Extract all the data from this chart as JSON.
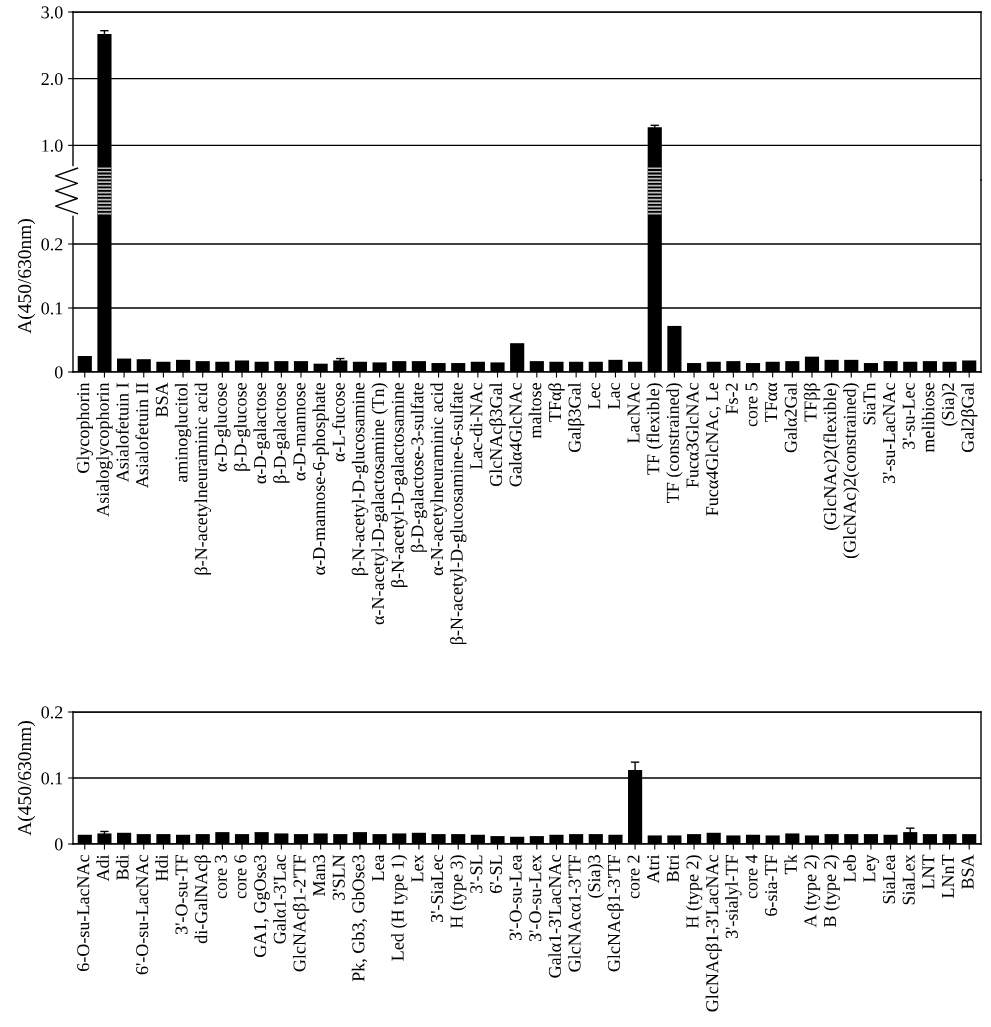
{
  "chart_data": [
    {
      "type": "bar",
      "color": "#000000",
      "grid": "y",
      "tick_labels": "y",
      "categories": [
        null,
        null,
        null,
        null,
        null,
        null,
        null,
        null,
        null,
        null,
        null,
        null,
        null,
        null,
        null,
        null,
        null,
        null,
        null,
        null,
        null,
        null,
        null,
        null,
        null,
        null,
        null,
        null,
        null,
        null,
        null,
        null,
        null,
        null,
        null,
        null,
        null,
        null,
        null,
        null,
        null,
        null,
        null,
        null,
        null,
        null
      ],
      "values": [
        null,
        2.67,
        null,
        null,
        null,
        null,
        null,
        null,
        null,
        null,
        null,
        null,
        null,
        null,
        null,
        null,
        null,
        null,
        null,
        null,
        null,
        null,
        null,
        null,
        null,
        null,
        null,
        null,
        null,
        1.27,
        null,
        null,
        null,
        null,
        null,
        null,
        null,
        null,
        null,
        null,
        null,
        null,
        null,
        null,
        null,
        null
      ],
      "errors": [
        null,
        0.05,
        null,
        null,
        null,
        null,
        null,
        null,
        null,
        null,
        null,
        null,
        null,
        null,
        null,
        null,
        null,
        null,
        null,
        null,
        null,
        null,
        null,
        null,
        null,
        null,
        null,
        null,
        null,
        0.03,
        null,
        null,
        null,
        null,
        null,
        null,
        null,
        null,
        null,
        null,
        null,
        null,
        null,
        null,
        null,
        null
      ],
      "ylim": [
        0.48,
        3.0
      ],
      "yticks": [
        {
          "value": 1.0,
          "label": "1.0"
        },
        {
          "value": 2.0,
          "label": "2.0"
        },
        {
          "value": 3.0,
          "label": "3.0"
        }
      ]
    },
    {
      "type": "bar",
      "ylabel": "A(450/630nm)",
      "color": "#000000",
      "grid": "y",
      "categories": [
        "Glycophorin",
        "Asialoglycophorin",
        "Asialofetuin I",
        "Asialofetuin II",
        "BSA",
        "aminoglucitol",
        "β-N-acetylneuraminic acid",
        "α-D-glucose",
        "β-D-glucose",
        "α-D-galactose",
        "β-D-galactose",
        "α-D-mannose",
        "α-D-mannose-6-phosphate",
        "α-L-fucose",
        "β-N-acetyl-D-glucosamine",
        "α-N-acetyl-D-galactosamine (Tn)",
        "β-N-acetyl-D-galactosamine",
        "β-D-galactose-3-sulfate",
        "α-N-acetylneuraminic acid",
        "β-N-acetyl-D-glucosamine-6-sulfate",
        "Lac-di-NAc",
        "GlcNAcβ3Gal",
        "Galα4GlcNAc",
        "maltose",
        "TFαβ",
        "Galβ3Gal",
        "Lec",
        "Lac",
        "LacNAc",
        "TF (flexible)",
        "TF (constrained)",
        "Fucα3GlcNAc",
        "Fucα4GlcNAc, Le",
        "Fs-2",
        "core 5",
        "TFαα",
        "Galα2Gal",
        "TFββ",
        "(GlcNAc)2(flexible)",
        "(GlcNAc)2(constrained)",
        "SiaTn",
        "3'-su-LacNAc",
        "3'-su-Lec",
        "melibiose",
        "(Sia)2",
        "Gal2βGal"
      ],
      "values": [
        0.025,
        null,
        0.021,
        0.02,
        0.016,
        0.019,
        0.017,
        0.016,
        0.018,
        0.016,
        0.017,
        0.017,
        0.013,
        0.018,
        0.016,
        0.015,
        0.017,
        0.017,
        0.014,
        0.014,
        0.016,
        0.015,
        0.045,
        0.017,
        0.016,
        0.016,
        0.016,
        0.019,
        0.016,
        null,
        0.072,
        0.014,
        0.016,
        0.017,
        0.014,
        0.016,
        0.017,
        0.024,
        0.019,
        0.019,
        0.014,
        0.017,
        0.016,
        0.017,
        0.016,
        0.018
      ],
      "errors": [
        null,
        null,
        null,
        null,
        null,
        null,
        null,
        null,
        null,
        null,
        null,
        null,
        null,
        0.003,
        null,
        null,
        null,
        null,
        null,
        null,
        null,
        null,
        null,
        null,
        null,
        null,
        null,
        null,
        null,
        null,
        null,
        null,
        null,
        null,
        null,
        null,
        null,
        null,
        null,
        null,
        null,
        null,
        null,
        null,
        null,
        null
      ],
      "ylim": [
        0,
        0.3
      ],
      "yticks": [
        0,
        0.1,
        0.2
      ]
    },
    {
      "type": "bar",
      "ylabel": "A(450/630nm)",
      "color": "#000000",
      "grid": "y",
      "categories": [
        "6-O-su-LacNAc",
        "Adi",
        "Bdi",
        "6'-O-su-LacNAc",
        "Hdi",
        "3'-O-su-TF",
        "di-GalNAcβ",
        "core 3",
        "core 6",
        "GA1, GgOse3",
        "Galα1-3'Lac",
        "GlcNAcβ1-2'TF",
        "Man3",
        "3'SLN",
        "Pk, Gb3, GbOse3",
        "Lea",
        "Led (H type 1)",
        "Lex",
        "3'-SiaLec",
        "H (type 3)",
        "3'-SL",
        "6'-SL",
        "3'-O-su-Lea",
        "3'-O-su-Lex",
        "Galα1-3'LacNAc",
        "GlcNAcα1-3'TF",
        "(Sia)3",
        "GlcNAcβ1-3'TF",
        "core 2",
        "Atri",
        "Btri",
        "H (type 2)",
        "GlcNAcβ1-3'LacNAc",
        "3'-sialyl-TF",
        "core 4",
        "6-sia-TF",
        "Tk",
        "A (type 2)",
        "B (type 2)",
        "Leb",
        "Ley",
        "SiaLea",
        "SiaLex",
        "LNT",
        "LNnT",
        "BSA"
      ],
      "values": [
        0.014,
        0.016,
        0.017,
        0.015,
        0.015,
        0.014,
        0.015,
        0.018,
        0.015,
        0.018,
        0.016,
        0.015,
        0.016,
        0.015,
        0.018,
        0.015,
        0.016,
        0.017,
        0.015,
        0.015,
        0.014,
        0.012,
        0.011,
        0.012,
        0.014,
        0.015,
        0.015,
        0.014,
        0.112,
        0.013,
        0.013,
        0.015,
        0.017,
        0.013,
        0.014,
        0.013,
        0.016,
        0.013,
        0.015,
        0.015,
        0.015,
        0.014,
        0.018,
        0.015,
        0.015,
        0.015
      ],
      "errors": [
        null,
        0.003,
        null,
        null,
        null,
        null,
        null,
        null,
        null,
        null,
        null,
        null,
        null,
        null,
        null,
        null,
        null,
        null,
        null,
        null,
        null,
        null,
        null,
        null,
        null,
        null,
        null,
        null,
        0.012,
        null,
        null,
        null,
        null,
        null,
        null,
        null,
        null,
        null,
        null,
        null,
        null,
        null,
        0.006,
        null,
        null,
        null
      ],
      "ylim": [
        0,
        0.2
      ],
      "yticks": [
        0,
        0.1,
        0.2
      ]
    }
  ]
}
